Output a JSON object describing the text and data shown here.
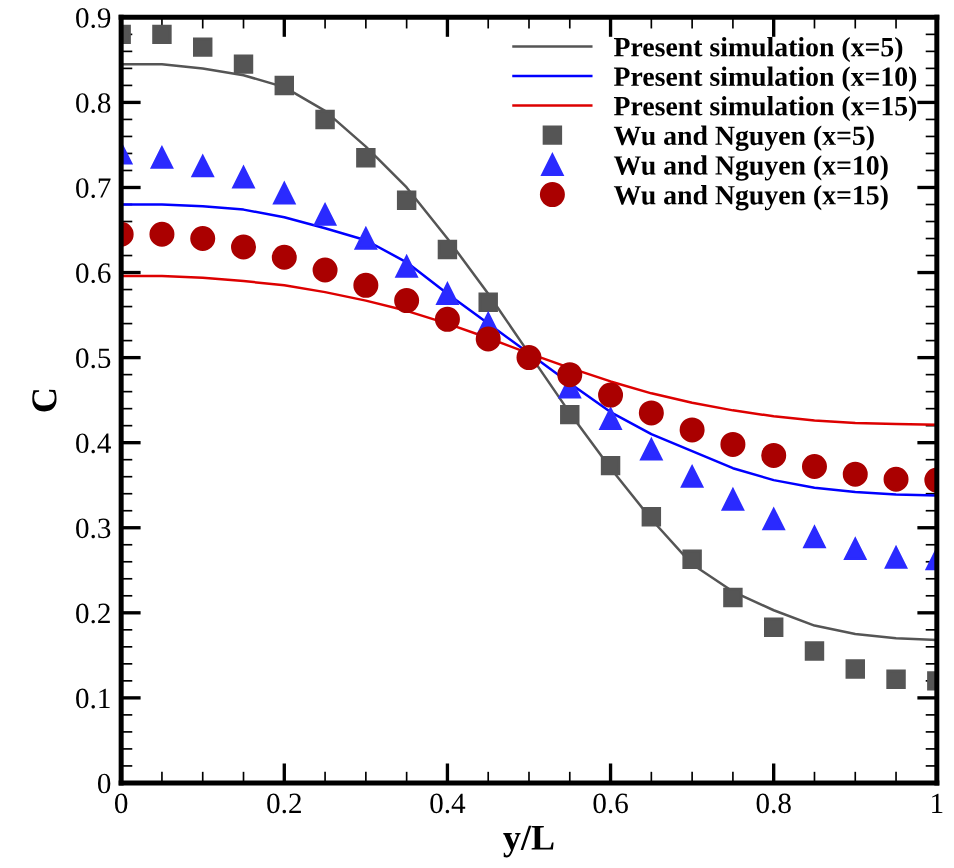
{
  "chart_data": {
    "type": "line",
    "xlabel": "y/L",
    "ylabel": "C",
    "x": [
      0,
      0.05,
      0.1,
      0.15,
      0.2,
      0.25,
      0.3,
      0.35,
      0.4,
      0.45,
      0.5,
      0.55,
      0.6,
      0.65,
      0.7,
      0.75,
      0.8,
      0.85,
      0.9,
      0.95,
      1
    ],
    "series": [
      {
        "name": "Present simulation (x=5)",
        "color": "#555555",
        "marker": "none",
        "values": [
          0.845,
          0.845,
          0.84,
          0.832,
          0.818,
          0.79,
          0.748,
          0.7,
          0.64,
          0.575,
          0.505,
          0.435,
          0.37,
          0.31,
          0.257,
          0.225,
          0.203,
          0.185,
          0.175,
          0.17,
          0.168
        ]
      },
      {
        "name": "Present simulation (x=10)",
        "color": "#0000ff",
        "marker": "none",
        "values": [
          0.68,
          0.68,
          0.678,
          0.674,
          0.665,
          0.652,
          0.638,
          0.612,
          0.575,
          0.54,
          0.505,
          0.47,
          0.436,
          0.41,
          0.39,
          0.37,
          0.356,
          0.347,
          0.342,
          0.339,
          0.338
        ]
      },
      {
        "name": "Present simulation (x=15)",
        "color": "#dd0000",
        "marker": "none",
        "values": [
          0.596,
          0.596,
          0.594,
          0.59,
          0.585,
          0.577,
          0.567,
          0.555,
          0.54,
          0.523,
          0.505,
          0.488,
          0.472,
          0.458,
          0.447,
          0.438,
          0.431,
          0.426,
          0.423,
          0.422,
          0.421
        ]
      },
      {
        "name": "Wu and Nguyen (x=5)",
        "type": "scatter",
        "color": "#555555",
        "marker": "square",
        "values": [
          0.88,
          0.88,
          0.865,
          0.845,
          0.82,
          0.78,
          0.735,
          0.685,
          0.627,
          0.565,
          null,
          0.433,
          0.373,
          0.313,
          0.263,
          0.218,
          0.183,
          0.155,
          0.134,
          0.122,
          0.12
        ]
      },
      {
        "name": "Wu and Nguyen (x=10)",
        "type": "scatter",
        "color": "#2a2aff",
        "marker": "triangle",
        "values": [
          0.74,
          0.735,
          0.725,
          0.712,
          0.693,
          0.668,
          0.64,
          0.607,
          0.575,
          0.54,
          null,
          0.465,
          0.428,
          0.392,
          0.36,
          0.333,
          0.31,
          0.289,
          0.275,
          0.265,
          0.263
        ]
      },
      {
        "name": "Wu and Nguyen (x=15)",
        "type": "scatter",
        "color": "#aa0000",
        "marker": "circle",
        "values": [
          0.645,
          0.645,
          0.64,
          0.63,
          0.618,
          0.603,
          0.585,
          0.567,
          0.545,
          0.522,
          0.5,
          0.48,
          0.456,
          0.435,
          0.415,
          0.398,
          0.385,
          0.372,
          0.363,
          0.357,
          0.356
        ]
      }
    ],
    "xlim": [
      0,
      1
    ],
    "ylim": [
      0,
      0.9
    ],
    "xticks": [
      0,
      0.2,
      0.4,
      0.6,
      0.8,
      1
    ],
    "yticks": [
      0,
      0.1,
      0.2,
      0.3,
      0.4,
      0.5,
      0.6,
      0.7,
      0.8,
      0.9
    ],
    "grid": false,
    "legend": "top right"
  }
}
